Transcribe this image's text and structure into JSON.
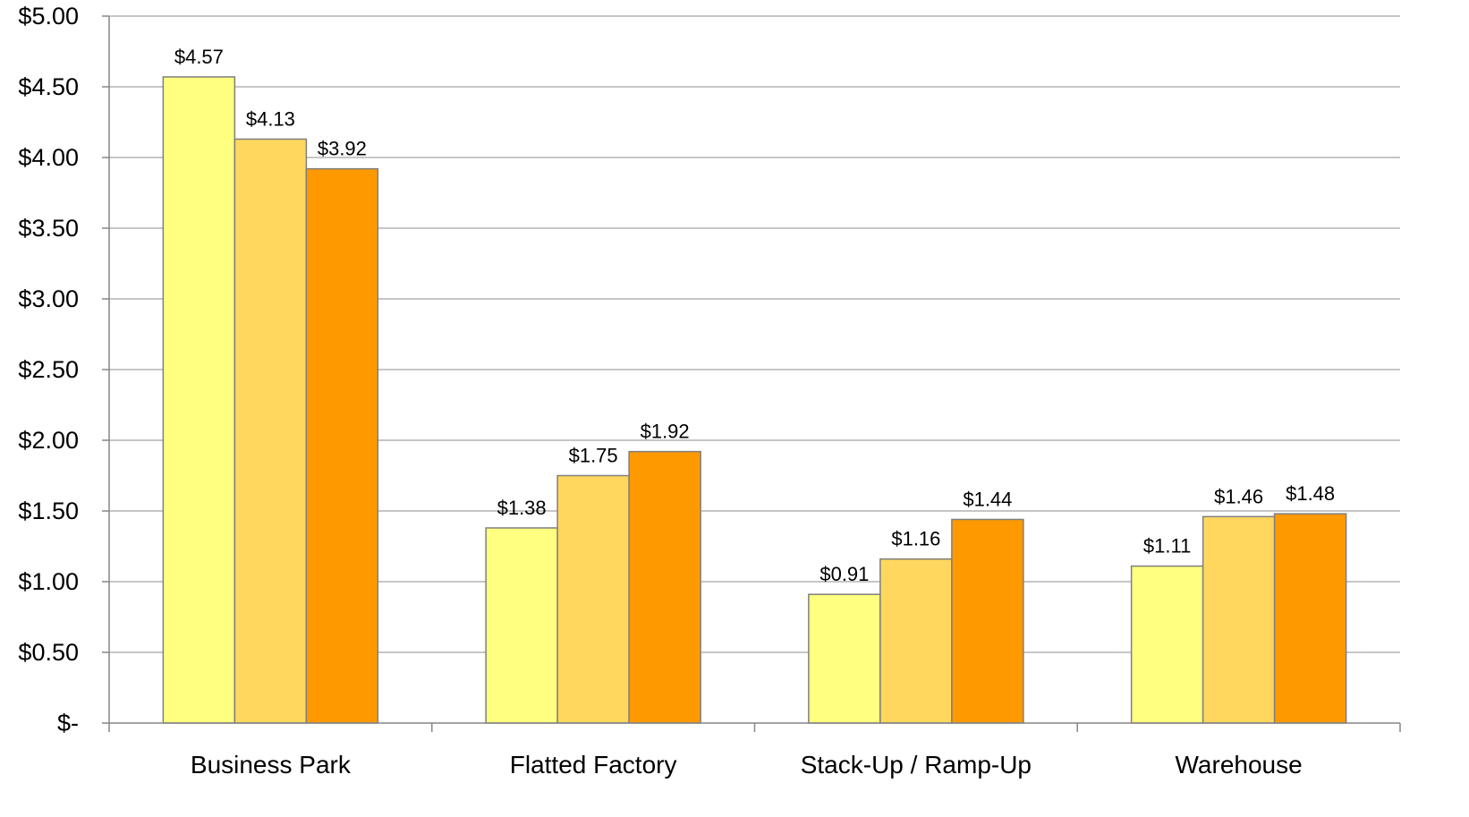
{
  "chart_data": {
    "type": "bar",
    "categories": [
      "Business Park",
      "Flatted Factory",
      "Stack-Up / Ramp-Up",
      "Warehouse"
    ],
    "series": [
      {
        "values": [
          4.57,
          1.38,
          0.91,
          1.11
        ],
        "labels": [
          "$4.57",
          "$1.38",
          "$0.91",
          "$1.11"
        ],
        "color": "#FFFF80"
      },
      {
        "values": [
          4.13,
          1.75,
          1.16,
          1.46
        ],
        "labels": [
          "$4.13",
          "$1.75",
          "$1.16",
          "$1.46"
        ],
        "color": "#FFD75E"
      },
      {
        "values": [
          3.92,
          1.92,
          1.44,
          1.48
        ],
        "labels": [
          "$3.92",
          "$1.92",
          "$1.44",
          "$1.48"
        ],
        "color": "#FF9900"
      }
    ],
    "ylim": [
      0,
      5
    ],
    "y_ticks": [
      0,
      0.5,
      1,
      1.5,
      2,
      2.5,
      3,
      3.5,
      4,
      4.5,
      5
    ],
    "y_tick_labels": [
      "$-",
      "$0.50",
      "$1.00",
      "$1.50",
      "$2.00",
      "$2.50",
      "$3.00",
      "$3.50",
      "$4.00",
      "$4.50",
      "$5.00"
    ],
    "grid": true,
    "legend": "none",
    "title": "",
    "xlabel": "",
    "ylabel": "",
    "colors": {
      "gridline": "#B3B3B3",
      "axis": "#868686",
      "bar_border": "#7F7F7F"
    }
  }
}
